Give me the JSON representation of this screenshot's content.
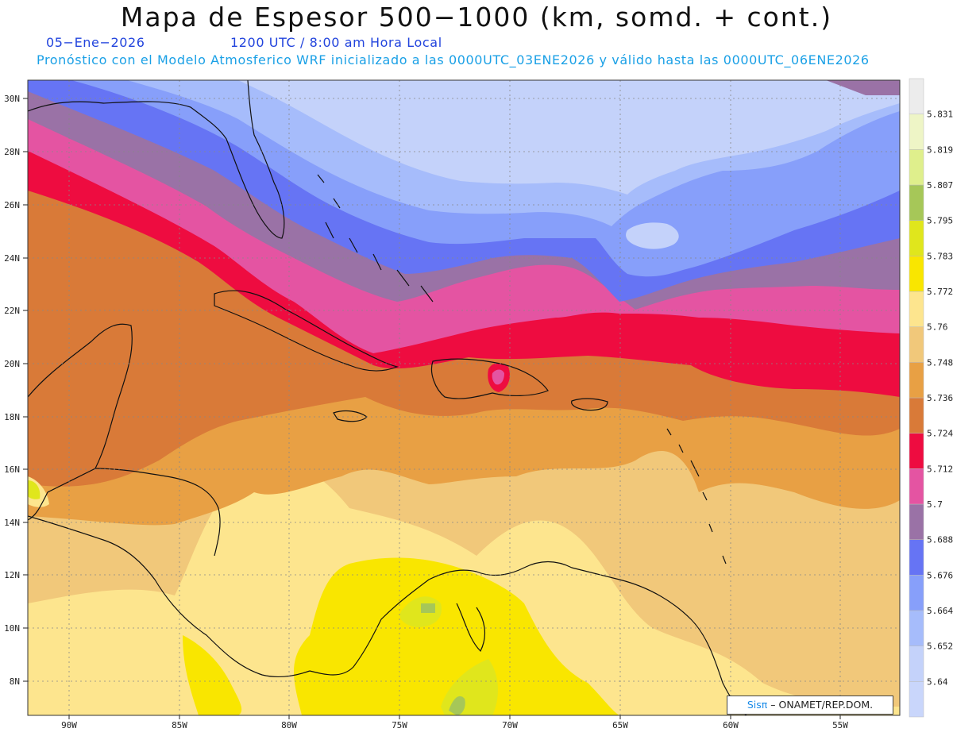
{
  "title": "Mapa de Espesor 500−1000 (km, somd. + cont.)",
  "date": "05−Ene−2026",
  "valid_time": "1200 UTC / 8:00 am Hora Local",
  "init_text": "Pronóstico con el Modelo Atmosferico WRF inicializado a las 0000UTC_03ENE2026 y válido hasta las  0000UTC_06ENE2026",
  "lat_labels": [
    "30N",
    "28N",
    "26N",
    "24N",
    "22N",
    "20N",
    "18N",
    "16N",
    "14N",
    "12N",
    "10N",
    "8N"
  ],
  "lon_labels": [
    "90W",
    "85W",
    "80W",
    "75W",
    "70W",
    "65W",
    "60W",
    "55W"
  ],
  "colorbar": {
    "labels": [
      "5.64",
      "5.652",
      "5.664",
      "5.676",
      "5.688",
      "5.7",
      "5.712",
      "5.724",
      "5.736",
      "5.748",
      "5.76",
      "5.772",
      "5.783",
      "5.795",
      "5.807",
      "5.819",
      "5.831"
    ],
    "colors": [
      "#c4d2fa",
      "#a6bcfb",
      "#879ffa",
      "#6674f4",
      "#9a72a6",
      "#e454a2",
      "#ee0c40",
      "#d97a38",
      "#e8a044",
      "#f1c87a",
      "#fde58e",
      "#f9e600",
      "#e0e61c",
      "#a6c758",
      "#dfef8c",
      "#eef5c6",
      "#ececec"
    ]
  },
  "credit": {
    "brand": "Sisπ",
    "org": "– ONAMET/REP.DOM."
  }
}
